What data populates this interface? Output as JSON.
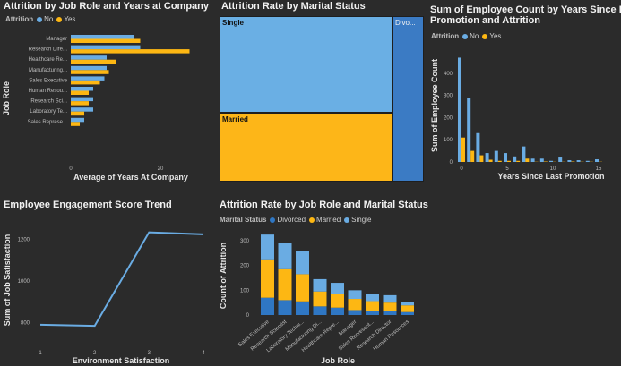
{
  "colors": {
    "bg": "#2b2b2b",
    "blue": "#6aace3",
    "yellow": "#fdb713",
    "darkblue": "#2f77c4",
    "treemap_blue": "#6aafe4",
    "treemap_yellow": "#fdb618",
    "treemap_dark": "#3b7bc4"
  },
  "panel1": {
    "title": "Attrition by Job Role and Years at Company",
    "legend_title": "Attrition",
    "legend_no": "No",
    "legend_yes": "Yes",
    "ylabel": "Job Role",
    "xlabel": "Average of Years At Company",
    "xticks": [
      "0",
      "20"
    ]
  },
  "panel2": {
    "title": "Attrition Rate by Marital Status",
    "labels": {
      "single": "Single",
      "married": "Married",
      "divorced": "Divo..."
    }
  },
  "panel3": {
    "title_line1": "Sum of Employee Count by Years Since Last",
    "title_line2": "Promotion and Attrition",
    "legend_title": "Attrition",
    "legend_no": "No",
    "legend_yes": "Yes",
    "ylabel": "Sum of Employee Count",
    "xlabel": "Years Since Last Promotion",
    "yticks": [
      "0",
      "100",
      "200",
      "300",
      "400"
    ],
    "xticks": [
      "0",
      "5",
      "10",
      "15"
    ]
  },
  "panel4": {
    "title": "Employee Engagement Score Trend",
    "ylabel": "Sum of Job Satisfaction",
    "xlabel": "Environment Satisfaction",
    "yticks": [
      "800",
      "1000",
      "1200"
    ],
    "xticks": [
      "1",
      "2",
      "3",
      "4"
    ]
  },
  "panel5": {
    "title": "Attrition Rate by Job Role and Marital Status",
    "legend_title": "Marital Status",
    "legend_divorced": "Divorced",
    "legend_married": "Married",
    "legend_single": "Single",
    "ylabel": "Count of Attrition",
    "xlabel": "Job Role",
    "yticks": [
      "0",
      "100",
      "200",
      "300"
    ]
  },
  "chart_data": [
    {
      "type": "bar",
      "orientation": "horizontal",
      "title": "Attrition by Job Role and Years at Company",
      "categories": [
        "Manager",
        "Research Dire...",
        "Healthcare Re...",
        "Manufacturing...",
        "Sales Executive",
        "Human Resou...",
        "Research Sci...",
        "Laboratory Te...",
        "Sales Represe..."
      ],
      "series": [
        {
          "name": "No",
          "values": [
            14,
            15.5,
            8,
            8,
            7.5,
            5,
            5,
            5,
            3
          ]
        },
        {
          "name": "Yes",
          "values": [
            15.5,
            26.5,
            10,
            8.5,
            6.5,
            4,
            4,
            3,
            2
          ]
        }
      ],
      "xlabel": "Average of Years At Company",
      "ylabel": "Job Role",
      "xlim": [
        0,
        32
      ]
    },
    {
      "type": "treemap",
      "title": "Attrition Rate by Marital Status",
      "categories": [
        "Single",
        "Married",
        "Divorced"
      ],
      "values": [
        470,
        673,
        327
      ]
    },
    {
      "type": "bar",
      "title": "Sum of Employee Count by Years Since Last Promotion and Attrition",
      "x": [
        0,
        1,
        2,
        3,
        4,
        5,
        6,
        7,
        8,
        9,
        10,
        11,
        12,
        13,
        14,
        15
      ],
      "series": [
        {
          "name": "No",
          "values": [
            470,
            290,
            130,
            40,
            50,
            40,
            25,
            70,
            15,
            15,
            5,
            20,
            8,
            8,
            5,
            12
          ]
        },
        {
          "name": "Yes",
          "values": [
            110,
            50,
            30,
            10,
            5,
            5,
            5,
            15,
            1,
            2,
            1,
            1,
            2,
            1,
            1,
            1
          ]
        }
      ],
      "xlabel": "Years Since Last Promotion",
      "ylabel": "Sum of Employee Count",
      "ylim": [
        0,
        500
      ]
    },
    {
      "type": "line",
      "title": "Employee Engagement Score Trend",
      "x": [
        1,
        2,
        3,
        4
      ],
      "values": [
        785,
        780,
        1230,
        1220
      ],
      "xlabel": "Environment Satisfaction",
      "ylabel": "Sum of Job Satisfaction",
      "ylim": [
        720,
        1280
      ]
    },
    {
      "type": "bar",
      "stacked": true,
      "title": "Attrition Rate by Job Role and Marital Status",
      "categories": [
        "Sales Executive",
        "Research Scientist",
        "Laboratory Techni...",
        "Manufacturing Di...",
        "Healthcare Repre...",
        "Manager",
        "Sales Represent...",
        "Research Director",
        "Human Resources"
      ],
      "series": [
        {
          "name": "Divorced",
          "values": [
            70,
            60,
            55,
            35,
            30,
            20,
            18,
            15,
            12
          ]
        },
        {
          "name": "Married",
          "values": [
            155,
            125,
            110,
            60,
            55,
            45,
            38,
            35,
            27
          ]
        },
        {
          "name": "Single",
          "values": [
            100,
            105,
            95,
            50,
            45,
            35,
            30,
            30,
            13
          ]
        }
      ],
      "xlabel": "Job Role",
      "ylabel": "Count of Attrition",
      "ylim": [
        0,
        340
      ]
    }
  ]
}
